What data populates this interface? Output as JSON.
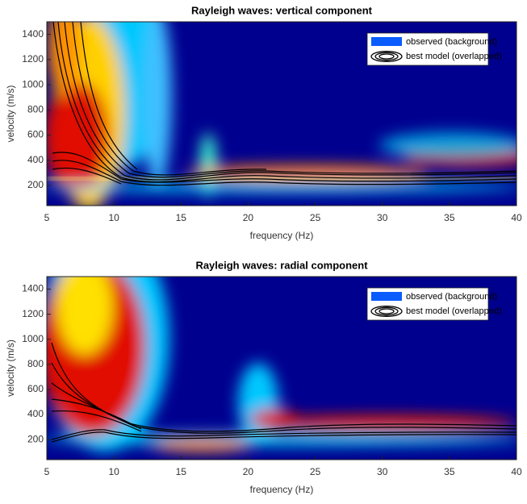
{
  "chart_data": [
    {
      "type": "heatmap",
      "title": "Rayleigh waves: vertical component",
      "x_label": "frequency (Hz)",
      "y_label": "velocity (m/s)",
      "xlim": [
        5,
        40
      ],
      "xticks": [
        5,
        10,
        15,
        20,
        25,
        30,
        35,
        40
      ],
      "ylim": [
        40,
        1500
      ],
      "yticks": [
        200,
        400,
        600,
        800,
        1000,
        1200,
        1400
      ],
      "legend": [
        "observed (background)",
        "best model (overlapped)"
      ],
      "legend_position": "upper right"
    },
    {
      "type": "heatmap",
      "title": "Rayleigh waves: radial component",
      "x_label": "frequency (Hz)",
      "y_label": "velocity (m/s)",
      "xlim": [
        5,
        40
      ],
      "xticks": [
        5,
        10,
        15,
        20,
        25,
        30,
        35,
        40
      ],
      "ylim": [
        40,
        1500
      ],
      "yticks": [
        200,
        400,
        600,
        800,
        1000,
        1200,
        1400
      ],
      "legend": [
        "observed (background)",
        "best model (overlapped)"
      ],
      "legend_position": "upper right"
    }
  ]
}
